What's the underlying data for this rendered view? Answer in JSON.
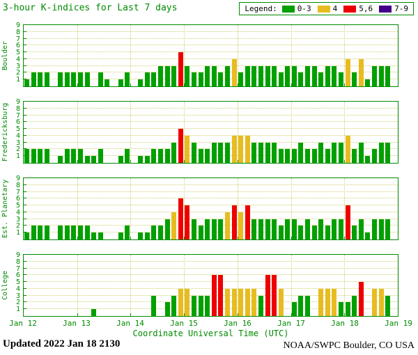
{
  "title": "3-hour K-indices for Last 7 days",
  "legend": {
    "label": "Legend:",
    "items": [
      {
        "label": "0-3",
        "color": "#00a000"
      },
      {
        "label": "4",
        "color": "#e8bc20"
      },
      {
        "label": "5,6",
        "color": "#ee0000"
      },
      {
        "label": "7-9",
        "color": "#440088"
      }
    ]
  },
  "xlabel": "Coordinate Universal Time (UTC)",
  "updated": "Updated 2022 Jan 18 2130",
  "credit": "NOAA/SWPC Boulder, CO USA",
  "chart_data": {
    "type": "bar",
    "title": "3-hour K-indices for Last 7 days",
    "xlabel": "Coordinate Universal Time (UTC)",
    "ylabel": "",
    "ylim": [
      0,
      9
    ],
    "yticks": [
      1,
      2,
      3,
      4,
      5,
      6,
      7,
      8,
      9
    ],
    "x_tick_labels": [
      "Jan 12",
      "Jan 13",
      "Jan 14",
      "Jan 15",
      "Jan 16",
      "Jan 17",
      "Jan 18",
      "Jan 19"
    ],
    "bars_per_day": 8,
    "days": 7,
    "grid": true,
    "legend_position": "top-right",
    "color_rules": {
      "0-3": "#00a000",
      "4": "#e8bc20",
      "5-6": "#ee0000",
      "7-9": "#440088"
    },
    "series": [
      {
        "name": "Boulder",
        "values": [
          1,
          2,
          2,
          2,
          0,
          2,
          2,
          2,
          2,
          2,
          0,
          2,
          1,
          0,
          1,
          2,
          0,
          1,
          2,
          2,
          3,
          3,
          3,
          5,
          3,
          2,
          2,
          3,
          3,
          2,
          3,
          4,
          2,
          3,
          3,
          3,
          3,
          3,
          2,
          3,
          3,
          2,
          3,
          3,
          2,
          3,
          3,
          2,
          4,
          2,
          4,
          1,
          3,
          3,
          3
        ]
      },
      {
        "name": "Fredericksburg",
        "values": [
          2,
          2,
          2,
          2,
          0,
          1,
          2,
          2,
          2,
          1,
          1,
          2,
          0,
          0,
          1,
          2,
          0,
          1,
          1,
          2,
          2,
          2,
          3,
          5,
          4,
          3,
          2,
          2,
          3,
          3,
          3,
          4,
          4,
          4,
          3,
          3,
          3,
          3,
          2,
          2,
          2,
          3,
          2,
          2,
          3,
          2,
          3,
          3,
          4,
          2,
          3,
          1,
          2,
          3,
          3
        ]
      },
      {
        "name": "Est. Planetary",
        "values": [
          1,
          2,
          2,
          2,
          0,
          2,
          2,
          2,
          2,
          2,
          1,
          1,
          0,
          0,
          1,
          2,
          0,
          1,
          1,
          2,
          2,
          3,
          4,
          6,
          5,
          3,
          2,
          3,
          3,
          3,
          4,
          5,
          4,
          5,
          3,
          3,
          3,
          3,
          2,
          3,
          3,
          2,
          3,
          2,
          3,
          2,
          3,
          3,
          5,
          2,
          3,
          1,
          3,
          3,
          3
        ]
      },
      {
        "name": "College",
        "values": [
          0,
          0,
          0,
          0,
          0,
          0,
          0,
          0,
          0,
          0,
          1,
          0,
          0,
          0,
          0,
          0,
          0,
          0,
          0,
          3,
          0,
          2,
          3,
          4,
          4,
          3,
          3,
          3,
          6,
          6,
          4,
          4,
          4,
          4,
          4,
          3,
          6,
          6,
          4,
          0,
          2,
          3,
          3,
          0,
          4,
          4,
          4,
          2,
          2,
          3,
          5,
          0,
          4,
          4,
          3
        ]
      }
    ]
  }
}
